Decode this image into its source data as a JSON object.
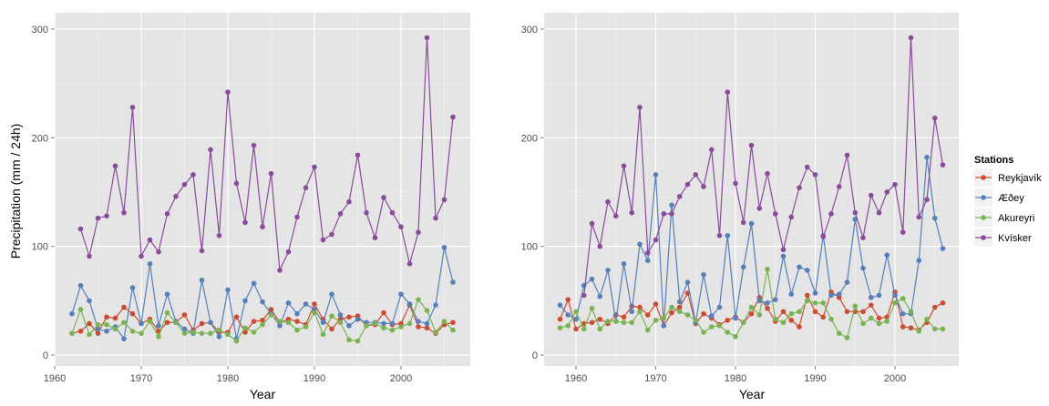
{
  "chart_data": [
    {
      "type": "line",
      "xlabel": "Year",
      "ylabel": "Precipitation (mm / 24h)",
      "xlim": [
        1960,
        2008
      ],
      "ylim": [
        -10,
        315
      ],
      "x_ticks": [
        1960,
        1970,
        1980,
        1990,
        2000
      ],
      "y_ticks": [
        0,
        100,
        200,
        300
      ],
      "grid": true,
      "series": [
        {
          "name": "Reykjavík",
          "color": "#cc4c32",
          "x": [
            1962,
            1963,
            1964,
            1965,
            1966,
            1967,
            1968,
            1969,
            1970,
            1971,
            1972,
            1973,
            1974,
            1975,
            1976,
            1977,
            1978,
            1979,
            1980,
            1981,
            1982,
            1983,
            1984,
            1985,
            1986,
            1987,
            1988,
            1989,
            1990,
            1991,
            1992,
            1993,
            1994,
            1995,
            1996,
            1997,
            1998,
            1999,
            2000,
            2001,
            2002,
            2003,
            2004,
            2005,
            2006
          ],
          "y": [
            20,
            22,
            29,
            20,
            35,
            34,
            44,
            38,
            29,
            33,
            22,
            30,
            30,
            37,
            23,
            29,
            30,
            21,
            21,
            35,
            21,
            31,
            32,
            42,
            30,
            33,
            31,
            28,
            47,
            33,
            24,
            33,
            35,
            36,
            27,
            28,
            39,
            28,
            29,
            46,
            26,
            25,
            20,
            28,
            30
          ]
        },
        {
          "name": "Æðey",
          "color": "#5580ba",
          "x": [
            1962,
            1963,
            1964,
            1965,
            1966,
            1967,
            1968,
            1969,
            1970,
            1971,
            1972,
            1973,
            1974,
            1975,
            1976,
            1977,
            1978,
            1979,
            1980,
            1981,
            1982,
            1983,
            1984,
            1985,
            1986,
            1987,
            1988,
            1989,
            1990,
            1991,
            1992,
            1993,
            1994,
            1995,
            1996,
            1997,
            1998,
            1999,
            2000,
            2001,
            2002,
            2003,
            2004,
            2005,
            2006
          ],
          "y": [
            38,
            64,
            50,
            24,
            22,
            26,
            15,
            62,
            29,
            84,
            27,
            56,
            31,
            24,
            20,
            69,
            30,
            17,
            60,
            15,
            50,
            66,
            49,
            38,
            27,
            48,
            38,
            47,
            42,
            30,
            56,
            37,
            27,
            33,
            30,
            30,
            29,
            29,
            56,
            47,
            31,
            29,
            46,
            99,
            67
          ]
        },
        {
          "name": "Akureyri",
          "color": "#79b453",
          "x": [
            1962,
            1963,
            1964,
            1965,
            1966,
            1967,
            1968,
            1969,
            1970,
            1971,
            1972,
            1973,
            1974,
            1975,
            1976,
            1977,
            1978,
            1979,
            1980,
            1981,
            1982,
            1983,
            1984,
            1985,
            1986,
            1987,
            1988,
            1989,
            1990,
            1991,
            1992,
            1993,
            1994,
            1995,
            1996,
            1997,
            1998,
            1999,
            2000,
            2001,
            2002,
            2003,
            2004,
            2005,
            2006
          ],
          "y": [
            20,
            42,
            19,
            28,
            28,
            24,
            30,
            22,
            20,
            31,
            17,
            39,
            30,
            20,
            21,
            20,
            20,
            23,
            19,
            13,
            25,
            21,
            28,
            37,
            31,
            30,
            23,
            26,
            39,
            19,
            36,
            30,
            14,
            13,
            27,
            29,
            25,
            23,
            26,
            29,
            51,
            41,
            21,
            31,
            23
          ]
        },
        {
          "name": "Kvísker",
          "color": "#8a4b9b",
          "x": [
            1963,
            1964,
            1965,
            1966,
            1967,
            1968,
            1969,
            1970,
            1971,
            1972,
            1973,
            1974,
            1975,
            1976,
            1977,
            1978,
            1979,
            1980,
            1981,
            1982,
            1983,
            1984,
            1985,
            1986,
            1987,
            1988,
            1989,
            1990,
            1991,
            1992,
            1993,
            1994,
            1995,
            1996,
            1997,
            1998,
            1999,
            2000,
            2001,
            2002,
            2003,
            2004,
            2005,
            2006
          ],
          "y": [
            116,
            91,
            126,
            128,
            174,
            131,
            228,
            91,
            106,
            95,
            130,
            146,
            157,
            166,
            96,
            189,
            110,
            242,
            158,
            122,
            193,
            118,
            167,
            78,
            95,
            127,
            154,
            173,
            106,
            111,
            130,
            141,
            184,
            131,
            108,
            145,
            131,
            118,
            84,
            113,
            292,
            126,
            143,
            219
          ]
        }
      ]
    },
    {
      "type": "line",
      "xlabel": "Year",
      "ylabel": "",
      "xlim": [
        1956,
        2008
      ],
      "ylim": [
        -10,
        315
      ],
      "x_ticks": [
        1960,
        1970,
        1980,
        1990,
        2000
      ],
      "y_ticks": [
        0,
        100,
        200,
        300
      ],
      "grid": true,
      "series": [
        {
          "name": "Reykjavík",
          "color": "#cc4c32",
          "x": [
            1958,
            1959,
            1960,
            1961,
            1962,
            1963,
            1964,
            1965,
            1966,
            1967,
            1968,
            1969,
            1970,
            1971,
            1972,
            1973,
            1974,
            1975,
            1976,
            1977,
            1978,
            1979,
            1980,
            1981,
            1982,
            1983,
            1984,
            1985,
            1986,
            1987,
            1988,
            1989,
            1990,
            1991,
            1992,
            1993,
            1994,
            1995,
            1996,
            1997,
            1998,
            1999,
            2000,
            2001,
            2002,
            2003,
            2004,
            2005,
            2006
          ],
          "y": [
            33,
            51,
            24,
            29,
            30,
            33,
            29,
            37,
            35,
            45,
            44,
            37,
            47,
            27,
            39,
            44,
            57,
            29,
            38,
            34,
            28,
            32,
            35,
            30,
            38,
            53,
            43,
            31,
            40,
            32,
            26,
            55,
            40,
            35,
            58,
            53,
            40,
            40,
            40,
            46,
            34,
            35,
            58,
            26,
            25,
            23,
            30,
            44,
            48
          ]
        },
        {
          "name": "Æðey",
          "color": "#5580ba",
          "x": [
            1958,
            1959,
            1960,
            1961,
            1962,
            1963,
            1964,
            1965,
            1966,
            1967,
            1968,
            1969,
            1970,
            1971,
            1972,
            1973,
            1974,
            1975,
            1976,
            1977,
            1978,
            1979,
            1980,
            1981,
            1982,
            1983,
            1984,
            1985,
            1986,
            1987,
            1988,
            1989,
            1990,
            1991,
            1992,
            1993,
            1994,
            1995,
            1996,
            1997,
            1998,
            1999,
            2000,
            2001,
            2002,
            2003,
            2004,
            2005,
            2006
          ],
          "y": [
            46,
            37,
            33,
            64,
            70,
            54,
            78,
            31,
            84,
            40,
            102,
            87,
            166,
            27,
            138,
            49,
            67,
            30,
            74,
            36,
            44,
            110,
            34,
            81,
            121,
            50,
            48,
            51,
            91,
            56,
            81,
            78,
            57,
            110,
            55,
            56,
            67,
            125,
            80,
            53,
            55,
            92,
            55,
            38,
            38,
            87,
            182,
            126,
            98
          ]
        },
        {
          "name": "Akureyri",
          "color": "#79b453",
          "x": [
            1958,
            1959,
            1960,
            1961,
            1962,
            1963,
            1964,
            1965,
            1966,
            1967,
            1968,
            1969,
            1970,
            1971,
            1972,
            1973,
            1974,
            1975,
            1976,
            1977,
            1978,
            1979,
            1980,
            1981,
            1982,
            1983,
            1984,
            1985,
            1986,
            1987,
            1988,
            1989,
            1990,
            1991,
            1992,
            1993,
            1994,
            1995,
            1996,
            1997,
            1998,
            1999,
            2000,
            2001,
            2002,
            2003,
            2004,
            2005,
            2006
          ],
          "y": [
            25,
            27,
            40,
            24,
            43,
            24,
            31,
            31,
            30,
            30,
            40,
            23,
            32,
            34,
            44,
            40,
            37,
            32,
            21,
            26,
            27,
            21,
            17,
            30,
            44,
            37,
            79,
            33,
            30,
            38,
            40,
            50,
            48,
            48,
            33,
            20,
            16,
            45,
            29,
            34,
            29,
            31,
            48,
            52,
            40,
            22,
            33,
            24,
            24
          ]
        },
        {
          "name": "Kvísker",
          "color": "#8a4b9b",
          "x": [
            1961,
            1962,
            1963,
            1964,
            1965,
            1966,
            1967,
            1968,
            1969,
            1970,
            1971,
            1972,
            1973,
            1974,
            1975,
            1976,
            1977,
            1978,
            1979,
            1980,
            1981,
            1982,
            1983,
            1984,
            1985,
            1986,
            1987,
            1988,
            1989,
            1990,
            1991,
            1992,
            1993,
            1994,
            1995,
            1996,
            1997,
            1998,
            1999,
            2000,
            2001,
            2002,
            2003,
            2004,
            2005,
            2006
          ],
          "y": [
            55,
            121,
            100,
            141,
            128,
            174,
            131,
            228,
            94,
            106,
            130,
            130,
            146,
            157,
            166,
            155,
            189,
            110,
            242,
            158,
            122,
            193,
            135,
            167,
            130,
            97,
            127,
            154,
            173,
            166,
            109,
            130,
            155,
            184,
            131,
            108,
            147,
            131,
            150,
            157,
            113,
            292,
            127,
            143,
            218,
            175
          ]
        }
      ]
    }
  ],
  "legend": {
    "title": "Stations",
    "items": [
      {
        "label": "Reykjavík",
        "color": "#cc4c32"
      },
      {
        "label": "Æðey",
        "color": "#5580ba"
      },
      {
        "label": "Akureyri",
        "color": "#79b453"
      },
      {
        "label": "Kvísker",
        "color": "#8a4b9b"
      }
    ]
  }
}
